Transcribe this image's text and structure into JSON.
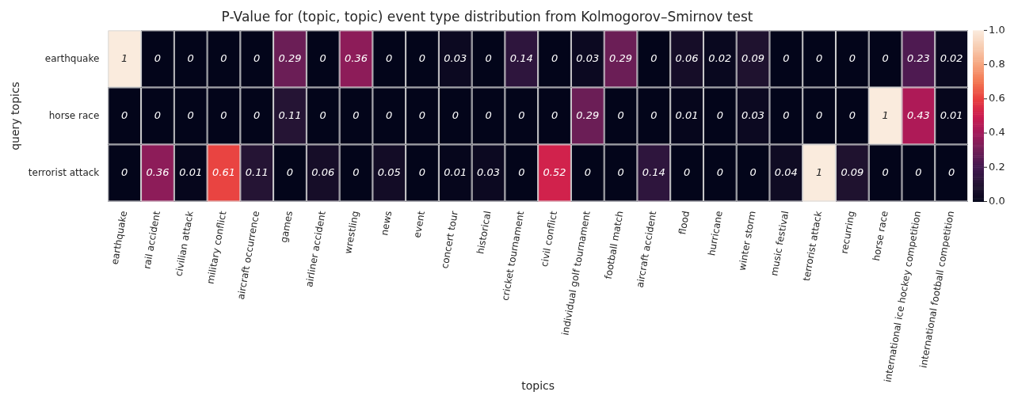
{
  "chart_data": {
    "type": "heatmap",
    "title": "P-Value for (topic, topic) event type distribution from Kolmogorov–Smirnov test",
    "xlabel": "topics",
    "ylabel": "query topics",
    "categories": [
      "earthquake",
      "rail accident",
      "civilian attack",
      "military conflict",
      "aircraft occurrence",
      "games",
      "airliner accident",
      "wrestling",
      "news",
      "event",
      "concert tour",
      "historical",
      "cricket tournament",
      "civil conflict",
      "individual golf tournament",
      "football match",
      "aircraft accident",
      "flood",
      "hurricane",
      "winter storm",
      "music festival",
      "terrorist attack",
      "recurring",
      "horse race",
      "international ice hockey competition",
      "international football competition"
    ],
    "y_categories": [
      "earthquake",
      "horse race",
      "terrorist attack"
    ],
    "cells": [
      [
        1,
        0,
        0,
        0,
        0,
        0.29,
        0,
        0.36,
        0,
        0,
        0.03,
        0,
        0.14,
        0,
        0.03,
        0.29,
        0,
        0.06,
        0.02,
        0.09,
        0,
        0,
        0,
        0,
        0.23,
        0.02
      ],
      [
        0,
        0,
        0,
        0,
        0,
        0.11,
        0,
        0,
        0,
        0,
        0,
        0,
        0,
        0,
        0.29,
        0,
        0,
        0.01,
        0,
        0.03,
        0,
        0,
        0,
        1,
        0.43,
        0.01
      ],
      [
        0,
        0.36,
        0.01,
        0.61,
        0.11,
        0,
        0.06,
        0,
        0.05,
        0,
        0.01,
        0.03,
        0,
        0.52,
        0,
        0,
        0.14,
        0,
        0,
        0,
        0.04,
        1,
        0.09,
        0,
        0,
        0
      ]
    ],
    "data_labels": true,
    "clim": [
      0,
      1
    ],
    "cticks": [
      {
        "value": 0,
        "label": "0.0"
      },
      0.2,
      0.4,
      0.6,
      0.8,
      {
        "value": 1,
        "label": "1.0"
      }
    ]
  }
}
